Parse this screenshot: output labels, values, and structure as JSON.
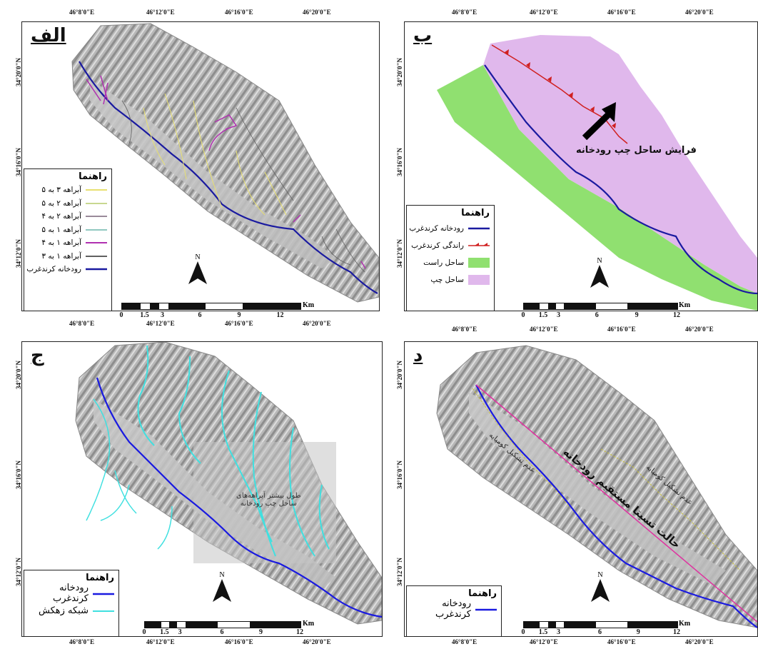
{
  "panels": {
    "alef": {
      "label": "الف",
      "top_coords": [
        "46°8'0\"E",
        "46°12'0\"E",
        "46°16'0\"E",
        "46°20'0\"E"
      ],
      "bottom_coords": [
        "46°8'0\"E",
        "46°12'0\"E",
        "46°16'0\"E",
        "46°20'0\"E"
      ],
      "left_coords": [
        "34°20'0\"N",
        "34°16'0\"N",
        "34°12'0\"N"
      ],
      "legend": {
        "title": "راهنما",
        "items": [
          {
            "label": "آبراهه ۳ به ۵",
            "color": "#e8e070"
          },
          {
            "label": "آبراهه ۲ به ۵",
            "color": "#c8d890"
          },
          {
            "label": "آبراهه ۲ به ۴",
            "color": "#9a8a9a"
          },
          {
            "label": "آبراهه ۱ به ۵",
            "color": "#90c8c0"
          },
          {
            "label": "آبراهه ۱ به ۴",
            "color": "#b030b0"
          },
          {
            "label": "آبراهه ۱ به ۳",
            "color": "#606060"
          },
          {
            "label": "رودخانه کرندغرب",
            "color": "#1a1aa0"
          }
        ]
      },
      "north": "N",
      "scale_ticks": [
        "0",
        "1.5",
        "3",
        "6",
        "9",
        "12"
      ],
      "scale_unit": "Km"
    },
    "be": {
      "label": "ب",
      "top_coords": [
        "46°8'0\"E",
        "46°12'0\"E",
        "46°16'0\"E",
        "46°20'0\"E"
      ],
      "bottom_coords": [
        "46°8'0\"E",
        "46°12'0\"E",
        "46°16'0\"E",
        "46°20'0\"E"
      ],
      "left_coords": [
        "34°20'0\"N",
        "34°16'0\"N",
        "34°12'0\"N"
      ],
      "annotation": "فرایش ساحل چپ رودخانه",
      "legend": {
        "title": "راهنما",
        "items": [
          {
            "label": "رودخانه کرندغرب",
            "color": "#1a1aa0"
          },
          {
            "label": "راندگی کرندغرب",
            "color": "#d02020"
          },
          {
            "label": "ساحل راست",
            "color": "#90e070"
          },
          {
            "label": "ساحل چپ",
            "color": "#e0b8ec"
          }
        ]
      },
      "north": "N",
      "scale_ticks": [
        "0",
        "1.5",
        "3",
        "6",
        "9",
        "12"
      ],
      "scale_unit": "Km"
    },
    "jim": {
      "label": "ج",
      "bottom_coords": [
        "46°8'0\"E",
        "46°12'0\"E",
        "46°16'0\"E",
        "46°20'0\"E"
      ],
      "left_coords": [
        "34°20'0\"N",
        "34°16'0\"N",
        "34°12'0\"N"
      ],
      "annotation_line1": "طول بیشتر آبراهه‌های",
      "annotation_line2": "ساحل چپ رودخانه",
      "legend": {
        "title": "راهنما",
        "items": [
          {
            "label": "رودخانه کرندغرب",
            "color": "#1a1ae0"
          },
          {
            "label": "شبکه زهکش",
            "color": "#40e0e0"
          }
        ]
      },
      "north": "N",
      "scale_ticks": [
        "0",
        "1.5",
        "3",
        "6",
        "9",
        "12"
      ],
      "scale_unit": "Km"
    },
    "dal": {
      "label": "د",
      "bottom_coords": [
        "46°8'0\"E",
        "46°12'0\"E",
        "46°16'0\"E",
        "46°20'0\"E"
      ],
      "left_coords": [
        "34°20'0\"N",
        "34°16'0\"N",
        "34°12'0\"N"
      ],
      "annotation_main": "حالت تسبتا مستقیم رودخانه",
      "annotation_side1": "عدم تشکیل کومپایه",
      "annotation_side2": "عدم تشکیل کومپایه",
      "legend": {
        "title": "راهنما",
        "items": [
          {
            "label": "رودخانه کرندغرب",
            "color": "#1a1ae0"
          }
        ]
      },
      "north": "N",
      "scale_ticks": [
        "0",
        "1.5",
        "3",
        "6",
        "9",
        "12"
      ],
      "scale_unit": "Km"
    }
  }
}
